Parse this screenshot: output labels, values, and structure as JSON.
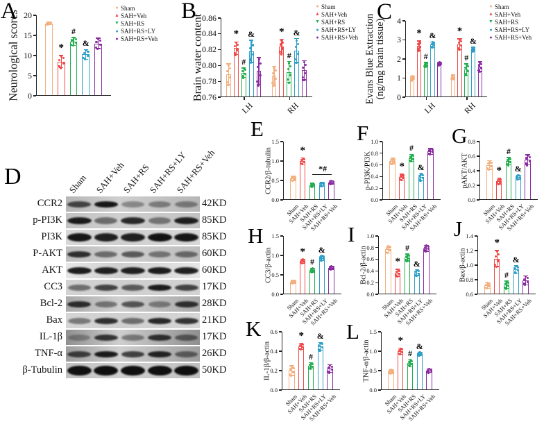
{
  "series": {
    "names": [
      "Sham",
      "SAH+Veh",
      "SAH+RS",
      "SAH+RS+LY",
      "SAH+RS+Veh"
    ],
    "slugs": [
      "sham",
      "sah-veh",
      "sah-rs",
      "sah-rs-ly",
      "sah-rs-veh"
    ],
    "colors": [
      "#F3AF7E",
      "#F04848",
      "#22AE4F",
      "#2E9FC7",
      "#8A2BA0"
    ],
    "markers": [
      "●",
      "▲",
      "▼",
      "●",
      "●"
    ]
  },
  "legend": {
    "entries": [
      "Sham",
      "SAH+Veh",
      "SAH+RS",
      "SAH+RS+LY",
      "SAH+RS+Veh"
    ]
  },
  "chart_data": [
    {
      "id": "A",
      "type": "bar",
      "panel_letter": "A",
      "ylabel": "Neurological scores",
      "ylabel_lines": [
        "Neurological scores"
      ],
      "ylim": [
        0,
        20
      ],
      "yticks": [
        0,
        5,
        10,
        15,
        20
      ],
      "ytick_labels": [
        "0",
        "5",
        "10",
        "15",
        "20"
      ],
      "categories": [
        "Sham",
        "SAH+Veh",
        "SAH+RS",
        "SAH+RS+LY",
        "SAH+RS+Veh"
      ],
      "show_category_labels": false,
      "groups": [
        {
          "label": "",
          "values": [
            18,
            8.5,
            13.5,
            10.3,
            13
          ],
          "errors": [
            0.3,
            1.5,
            1.0,
            1.2,
            1.3
          ],
          "sig": [
            "",
            "*",
            "#",
            "&",
            ""
          ]
        }
      ]
    },
    {
      "id": "B",
      "type": "bar",
      "panel_letter": "B",
      "ylabel": "Brain water content",
      "ylabel_lines": [
        "Brain water content"
      ],
      "ylim": [
        0.76,
        0.86
      ],
      "yticks": [
        0.76,
        0.78,
        0.8,
        0.82,
        0.84,
        0.86
      ],
      "ytick_labels": [
        "0.76",
        "0.78",
        "0.80",
        "0.82",
        "0.84",
        "0.86"
      ],
      "categories": [
        "Sham",
        "SAH+Veh",
        "SAH+RS",
        "SAH+RS+LY",
        "SAH+RS+Veh"
      ],
      "show_category_labels": false,
      "groups": [
        {
          "label": "LH",
          "values": [
            0.789,
            0.822,
            0.791,
            0.818,
            0.793
          ],
          "errors": [
            0.013,
            0.008,
            0.006,
            0.014,
            0.017
          ],
          "sig": [
            "",
            "*",
            "#",
            "&",
            ""
          ]
        },
        {
          "label": "RH",
          "values": [
            0.787,
            0.824,
            0.792,
            0.819,
            0.794
          ],
          "errors": [
            0.012,
            0.009,
            0.013,
            0.015,
            0.012
          ],
          "sig": [
            "",
            "*",
            "#",
            "&",
            ""
          ]
        }
      ]
    },
    {
      "id": "C",
      "type": "bar",
      "panel_letter": "C",
      "ylabel": "Evans Blue Extraction (ng/mg brain tissue)",
      "ylabel_lines": [
        "Evans Blue Extraction",
        "(ng/mg brain tissue)"
      ],
      "ylim": [
        0,
        4
      ],
      "yticks": [
        0,
        1,
        2,
        3,
        4
      ],
      "ytick_labels": [
        "0",
        "1",
        "2",
        "3",
        "4"
      ],
      "categories": [
        "Sham",
        "SAH+Veh",
        "SAH+RS",
        "SAH+RS+LY",
        "SAH+RS+Veh"
      ],
      "show_category_labels": false,
      "groups": [
        {
          "label": "LH",
          "values": [
            1.0,
            2.7,
            1.7,
            2.75,
            1.75
          ],
          "errors": [
            0.12,
            0.25,
            0.12,
            0.15,
            0.08
          ],
          "sig": [
            "",
            "*",
            "#",
            "&",
            ""
          ]
        },
        {
          "label": "RH",
          "values": [
            1.05,
            2.78,
            1.45,
            2.5,
            1.6
          ],
          "errors": [
            0.12,
            0.28,
            0.3,
            0.12,
            0.25
          ],
          "sig": [
            "",
            "*",
            "#",
            "&",
            ""
          ]
        }
      ]
    },
    {
      "id": "E",
      "type": "bar",
      "panel_letter": "E",
      "ylabel": "CCR2/β-tubulin",
      "ylabel_lines": [
        "CCR2/β-tubulin"
      ],
      "ylim": [
        0,
        1.5
      ],
      "yticks": [
        0,
        0.5,
        1.0,
        1.5
      ],
      "ytick_labels": [
        "0.0",
        "0.5",
        "1.0",
        "1.5"
      ],
      "categories": [
        "Sham",
        "SAH+Veh",
        "SAH+RS",
        "SAH+RS+LY",
        "SAH+RS+Veh"
      ],
      "show_category_labels": true,
      "groups": [
        {
          "label": "",
          "values": [
            0.55,
            1.0,
            0.38,
            0.4,
            0.45
          ],
          "errors": [
            0.06,
            0.08,
            0.05,
            0.05,
            0.04
          ],
          "sig": [
            "",
            "*",
            "",
            "",
            ""
          ]
        }
      ],
      "annotations": [
        {
          "type": "line",
          "from": 2,
          "to": 4,
          "y": 0.66,
          "label": "*#"
        }
      ]
    },
    {
      "id": "F",
      "type": "bar",
      "panel_letter": "F",
      "ylabel": "p-PI3K/PI3K",
      "ylabel_lines": [
        "p-PI3K/PI3K"
      ],
      "ylim": [
        0,
        1.0
      ],
      "yticks": [
        0,
        0.2,
        0.4,
        0.6,
        0.8,
        1.0
      ],
      "ytick_labels": [
        "0.0",
        "0.2",
        "0.4",
        "0.6",
        "0.8",
        "1.0"
      ],
      "categories": [
        "Sham",
        "SAH+Veh",
        "SAH+RS",
        "SAH+RS+LY",
        "SAH+RS+Veh"
      ],
      "show_category_labels": true,
      "groups": [
        {
          "label": "",
          "values": [
            0.67,
            0.39,
            0.72,
            0.39,
            0.83
          ],
          "errors": [
            0.05,
            0.05,
            0.06,
            0.06,
            0.05
          ],
          "sig": [
            "",
            "*",
            "#",
            "&",
            ""
          ]
        }
      ]
    },
    {
      "id": "G",
      "type": "bar",
      "panel_letter": "G",
      "ylabel": "pAKT/AKT",
      "ylabel_lines": [
        "pAKT/AKT"
      ],
      "ylim": [
        0,
        0.8
      ],
      "yticks": [
        0,
        0.2,
        0.4,
        0.6,
        0.8
      ],
      "ytick_labels": [
        "0.0",
        "0.2",
        "0.4",
        "0.6",
        "0.8"
      ],
      "categories": [
        "Sham",
        "SAH+Veh",
        "SAH+RS",
        "SAH+RS+LY",
        "SAH+RS+Veh"
      ],
      "show_category_labels": true,
      "groups": [
        {
          "label": "",
          "values": [
            0.48,
            0.26,
            0.53,
            0.31,
            0.55
          ],
          "errors": [
            0.06,
            0.04,
            0.05,
            0.03,
            0.07
          ],
          "sig": [
            "",
            "*",
            "#",
            "&",
            ""
          ]
        }
      ]
    },
    {
      "id": "H",
      "type": "bar",
      "panel_letter": "H",
      "ylabel": "CC3/β-actin",
      "ylabel_lines": [
        "CC3/β-actin"
      ],
      "ylim": [
        0,
        1.5
      ],
      "yticks": [
        0,
        0.5,
        1.0,
        1.5
      ],
      "ytick_labels": [
        "0.0",
        "0.5",
        "1.0",
        "1.5"
      ],
      "categories": [
        "Sham",
        "SAH+Veh",
        "SAH+RS",
        "SAH+RS+LY",
        "SAH+RS+Veh"
      ],
      "show_category_labels": true,
      "groups": [
        {
          "label": "",
          "values": [
            0.32,
            0.85,
            0.62,
            0.93,
            0.68
          ],
          "errors": [
            0.04,
            0.05,
            0.05,
            0.06,
            0.04
          ],
          "sig": [
            "",
            "*",
            "#",
            "&",
            ""
          ]
        }
      ]
    },
    {
      "id": "I",
      "type": "bar",
      "panel_letter": "I",
      "ylabel": "Bcl-2/β-actin",
      "ylabel_lines": [
        "Bcl-2/β-actin"
      ],
      "ylim": [
        0,
        1.0
      ],
      "yticks": [
        0,
        0.2,
        0.4,
        0.6,
        0.8,
        1.0
      ],
      "ytick_labels": [
        "0.0",
        "0.2",
        "0.4",
        "0.6",
        "0.8",
        "1.0"
      ],
      "categories": [
        "Sham",
        "SAH+Veh",
        "SAH+RS",
        "SAH+RS+LY",
        "SAH+RS+Veh"
      ],
      "show_category_labels": true,
      "groups": [
        {
          "label": "",
          "values": [
            0.77,
            0.37,
            0.63,
            0.37,
            0.79
          ],
          "errors": [
            0.06,
            0.06,
            0.06,
            0.05,
            0.05
          ],
          "sig": [
            "",
            "*",
            "#",
            "&",
            ""
          ]
        }
      ]
    },
    {
      "id": "J",
      "type": "bar",
      "panel_letter": "J",
      "ylabel": "Bax/β-actin",
      "ylabel_lines": [
        "Bax/β-actin"
      ],
      "ylim": [
        0.6,
        1.4
      ],
      "yticks": [
        0.6,
        0.8,
        1.0,
        1.2,
        1.4
      ],
      "ytick_labels": [
        "0.6",
        "0.8",
        "1.0",
        "1.2",
        "1.4"
      ],
      "categories": [
        "Sham",
        "SAH+Veh",
        "SAH+RS",
        "SAH+RS+LY",
        "SAH+RS+Veh"
      ],
      "show_category_labels": true,
      "groups": [
        {
          "label": "",
          "values": [
            0.72,
            1.09,
            0.73,
            0.94,
            0.79
          ],
          "errors": [
            0.04,
            0.11,
            0.05,
            0.05,
            0.06
          ],
          "sig": [
            "",
            "*",
            "#",
            "&",
            ""
          ]
        }
      ]
    },
    {
      "id": "K",
      "type": "bar",
      "panel_letter": "K",
      "ylabel": "IL-1β/β-actin",
      "ylabel_lines": [
        "IL-1β/β-actin"
      ],
      "ylim": [
        0,
        0.6
      ],
      "yticks": [
        0,
        0.2,
        0.4,
        0.6
      ],
      "ytick_labels": [
        "0.0",
        "0.2",
        "0.4",
        "0.6"
      ],
      "categories": [
        "Sham",
        "SAH+Veh",
        "SAH+RS",
        "SAH+RS+LY",
        "SAH+RS+Veh"
      ],
      "show_category_labels": true,
      "groups": [
        {
          "label": "",
          "values": [
            0.2,
            0.45,
            0.25,
            0.45,
            0.22
          ],
          "errors": [
            0.05,
            0.03,
            0.03,
            0.04,
            0.04
          ],
          "sig": [
            "",
            "*",
            "#",
            "&",
            ""
          ]
        }
      ]
    },
    {
      "id": "L",
      "type": "bar",
      "panel_letter": "L",
      "ylabel": "TNF-α/β-actin",
      "ylabel_lines": [
        "TNF-α/β-actin"
      ],
      "ylim": [
        0,
        1.5
      ],
      "yticks": [
        0,
        0.5,
        1.0,
        1.5
      ],
      "ytick_labels": [
        "0.0",
        "0.5",
        "1.0",
        "1.5"
      ],
      "categories": [
        "Sham",
        "SAH+Veh",
        "SAH+RS",
        "SAH+RS+LY",
        "SAH+RS+Veh"
      ],
      "show_category_labels": true,
      "groups": [
        {
          "label": "",
          "values": [
            0.48,
            1.0,
            0.7,
            0.93,
            0.5
          ],
          "errors": [
            0.05,
            0.08,
            0.08,
            0.04,
            0.05
          ],
          "sig": [
            "",
            "*",
            "#",
            "&",
            ""
          ]
        }
      ]
    }
  ],
  "blot": {
    "panel_letter": "D",
    "lane_labels": [
      "Sham",
      "SAH+Veh",
      "SAH+RS",
      "SAH+RS+LY",
      "SAH+RS+Veh"
    ],
    "rows": [
      {
        "protein": "CCR2",
        "size": "42KD",
        "bands": [
          0.7,
          0.95,
          0.35,
          0.4,
          0.4
        ],
        "band_h": 9,
        "bg": "#b6b6b6"
      },
      {
        "protein": "p-PI3K",
        "size": "85KD",
        "bands": [
          0.92,
          0.5,
          0.85,
          0.45,
          0.9
        ],
        "band_h": 10,
        "bg": "#c2c2c2"
      },
      {
        "protein": "PI3K",
        "size": "85KD",
        "bands": [
          0.95,
          0.9,
          0.9,
          0.97,
          0.95
        ],
        "band_h": 12,
        "bg": "#d8d8d8"
      },
      {
        "protein": "P-AKT",
        "size": "60KD",
        "bands": [
          0.82,
          0.5,
          0.6,
          0.45,
          0.5
        ],
        "band_h": 9,
        "bg": "#bdbdbd"
      },
      {
        "protein": "AKT",
        "size": "60KD",
        "bands": [
          0.92,
          0.9,
          0.9,
          0.92,
          0.9
        ],
        "band_h": 10,
        "bg": "#e6e6e6"
      },
      {
        "protein": "CC3",
        "size": "17KD",
        "bands": [
          0.5,
          0.72,
          0.6,
          0.92,
          0.72
        ],
        "band_h": 9,
        "bg": "#d2d2d2"
      },
      {
        "protein": "Bcl-2",
        "size": "28KD",
        "bands": [
          0.82,
          0.45,
          0.62,
          0.4,
          0.8
        ],
        "band_h": 9,
        "bg": "#a9a9a9"
      },
      {
        "protein": "Bax",
        "size": "21KD",
        "bands": [
          0.45,
          0.82,
          0.5,
          0.85,
          0.8
        ],
        "band_h": 9,
        "bg": "#d5d5d5"
      },
      {
        "protein": "IL-1β",
        "size": "17KD",
        "bands": [
          0.3,
          0.78,
          0.42,
          0.8,
          0.52
        ],
        "band_h": 9,
        "bg": "#8f8f8f"
      },
      {
        "protein": "TNF-α",
        "size": "26KD",
        "bands": [
          0.72,
          0.92,
          0.72,
          0.88,
          0.52
        ],
        "band_h": 9,
        "bg": "#9e9e9e"
      },
      {
        "protein": "β-Tubulin",
        "size": "50KD",
        "bands": [
          0.98,
          0.98,
          0.98,
          0.98,
          0.98
        ],
        "band_h": 14,
        "bg": "#c0c0c0"
      }
    ]
  }
}
